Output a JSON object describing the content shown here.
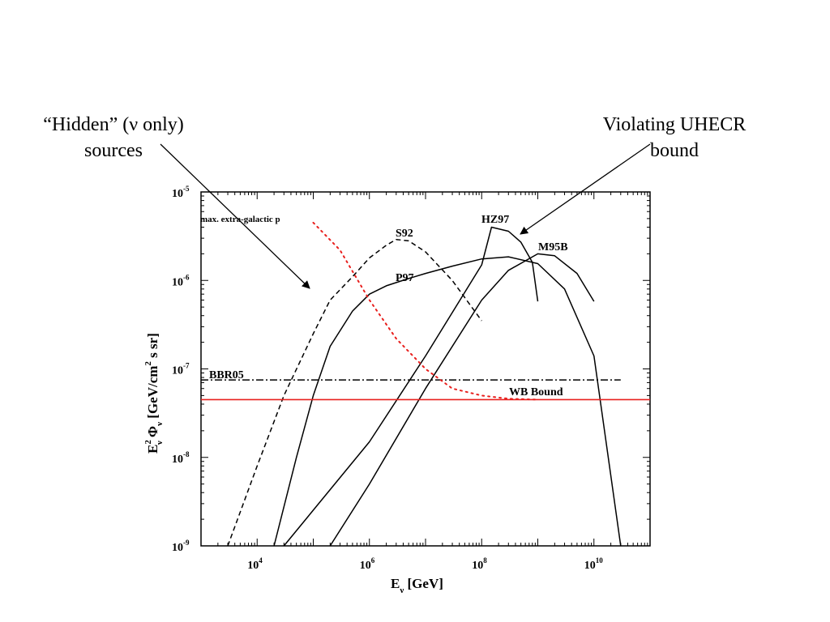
{
  "annotations": {
    "hidden_line1": "“Hidden” (ν only)",
    "hidden_line2": "sources",
    "violating_line1": "Violating UHECR",
    "violating_line2": "bound"
  },
  "chart_data": {
    "type": "line",
    "xlabel": "Eν [GeV]",
    "ylabel": "E²ν Φν [GeV/cm² s sr]",
    "xscale": "log",
    "yscale": "log",
    "xlim": [
      1000,
      100000000000.0
    ],
    "ylim": [
      1e-09,
      1e-05
    ],
    "x_ticks": [
      {
        "base": "10",
        "exp": "4",
        "value": 10000
      },
      {
        "base": "10",
        "exp": "6",
        "value": 1000000
      },
      {
        "base": "10",
        "exp": "8",
        "value": 100000000
      },
      {
        "base": "10",
        "exp": "10",
        "value": 10000000000
      }
    ],
    "y_ticks": [
      {
        "base": "10",
        "exp": "-5",
        "value": 1e-05
      },
      {
        "base": "10",
        "exp": "-6",
        "value": 1e-06
      },
      {
        "base": "10",
        "exp": "-7",
        "value": 1e-07
      },
      {
        "base": "10",
        "exp": "-8",
        "value": 1e-08
      },
      {
        "base": "10",
        "exp": "-9",
        "value": 1e-09
      }
    ],
    "colors": {
      "black": "#000000",
      "red": "#e8201e"
    },
    "series": [
      {
        "name": "S92",
        "style": "dashed",
        "color": "#000000",
        "x": [
          3000,
          10000,
          30000,
          100000,
          200000,
          500000,
          1000000,
          2000000,
          3000000,
          5000000,
          10000000,
          30000000,
          100000000
        ],
        "y": [
          1e-09,
          8e-09,
          5e-08,
          2.5e-07,
          6e-07,
          1.1e-06,
          1.8e-06,
          2.5e-06,
          2.9e-06,
          2.8e-06,
          2.1e-06,
          1e-06,
          3.5e-07
        ]
      },
      {
        "name": "P97",
        "style": "solid",
        "color": "#000000",
        "x": [
          20000,
          50000,
          100000,
          200000,
          500000,
          1000000,
          2000000,
          5000000,
          10000000,
          30000000,
          100000000,
          300000000,
          1000000000,
          3000000000,
          10000000000,
          30000000000
        ],
        "y": [
          1e-09,
          1e-08,
          5e-08,
          1.8e-07,
          4.5e-07,
          7e-07,
          8.7e-07,
          1.05e-06,
          1.2e-06,
          1.45e-06,
          1.75e-06,
          1.85e-06,
          1.55e-06,
          8e-07,
          1.4e-07,
          1e-09
        ]
      },
      {
        "name": "HZ97",
        "style": "solid",
        "color": "#000000",
        "x": [
          30000,
          1000000,
          10000000,
          100000000,
          150000000,
          300000000,
          500000000,
          800000000,
          1000000000
        ],
        "y": [
          1e-09,
          1.5e-08,
          1.4e-07,
          1.5e-06,
          4e-06,
          3.6e-06,
          2.7e-06,
          1.6e-06,
          5.8e-07
        ]
      },
      {
        "name": "M95B",
        "style": "solid",
        "color": "#000000",
        "x": [
          200000,
          1000000,
          10000000,
          100000000,
          300000000,
          1000000000,
          2000000000,
          5000000000,
          10000000000
        ],
        "y": [
          1e-09,
          5e-09,
          6e-08,
          6e-07,
          1.3e-06,
          2e-06,
          1.9e-06,
          1.2e-06,
          5.8e-07
        ]
      },
      {
        "name": "BBR05",
        "style": "dashdot",
        "color": "#000000",
        "x": [
          1000,
          30000000000
        ],
        "y": [
          7.5e-08,
          7.5e-08
        ]
      },
      {
        "name": "WB Bound",
        "style": "solid",
        "color": "#e8201e",
        "x": [
          1000,
          100000000000
        ],
        "y": [
          4.5e-08,
          4.5e-08
        ]
      },
      {
        "name": "max. extra-galactic p",
        "style": "dotted",
        "color": "#e8201e",
        "x": [
          100000,
          300000,
          1000000,
          3000000,
          10000000,
          30000000,
          100000000,
          300000000,
          1000000000
        ],
        "y": [
          4.5e-06,
          2.2e-06,
          6e-07,
          2.2e-07,
          1e-07,
          6e-08,
          5e-08,
          4.6e-08,
          4.5e-08
        ]
      }
    ],
    "annotations": [
      "“Hidden” (ν only) sources",
      "Violating UHECR bound"
    ]
  }
}
